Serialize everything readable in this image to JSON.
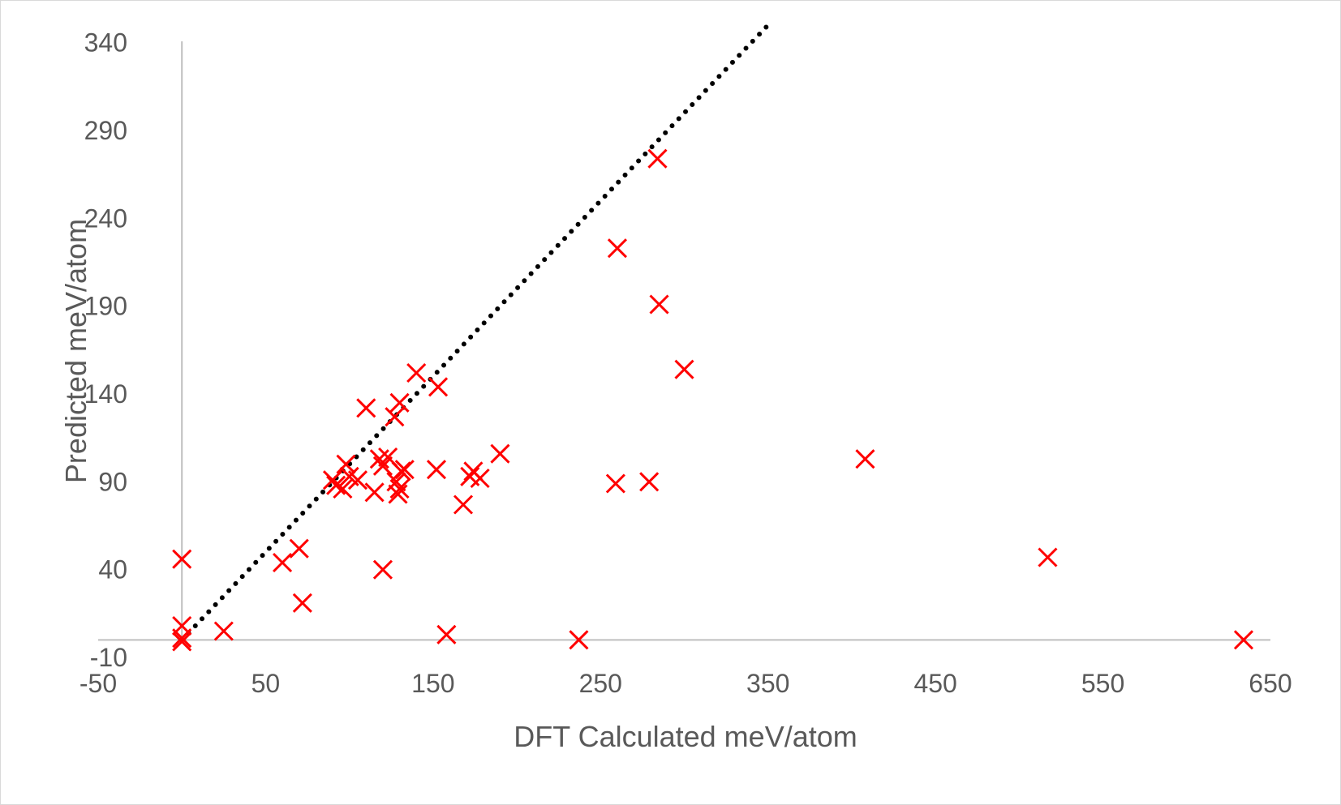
{
  "chart_data": {
    "type": "scatter",
    "title": "",
    "xlabel": "DFT Calculated meV/atom",
    "ylabel": "Predicted meV/atom",
    "xlim": [
      -50,
      650
    ],
    "ylim": [
      -10,
      350
    ],
    "x_ticks": [
      -50,
      50,
      150,
      250,
      350,
      450,
      550,
      650
    ],
    "y_ticks": [
      -10,
      40,
      90,
      140,
      190,
      240,
      290,
      340
    ],
    "grid": false,
    "legend": "none",
    "marker": "x",
    "marker_color": "#ff0000",
    "reference_line": {
      "style": "dotted",
      "color": "#000000",
      "x": [
        0,
        350
      ],
      "y": [
        0,
        350
      ]
    },
    "series": [
      {
        "x": [
          0,
          0,
          0,
          0,
          25,
          60,
          70,
          72,
          90,
          92,
          96,
          98,
          100,
          105,
          110,
          115,
          118,
          120,
          120,
          123,
          127,
          128,
          129,
          130,
          130,
          131,
          133,
          140,
          152,
          153,
          158,
          168,
          172,
          174,
          178,
          190,
          237,
          259,
          260,
          279,
          284,
          285,
          300,
          408,
          517,
          634
        ],
        "y": [
          46,
          8,
          1,
          -1,
          5,
          44,
          52,
          21,
          91,
          88,
          86,
          100,
          93,
          91,
          132,
          84,
          103,
          40,
          99,
          104,
          127,
          90,
          83,
          135,
          86,
          96,
          97,
          152,
          97,
          144,
          3,
          77,
          93,
          96,
          92,
          106,
          0,
          89,
          223,
          90,
          274,
          191,
          154,
          103,
          47,
          0
        ]
      }
    ]
  }
}
